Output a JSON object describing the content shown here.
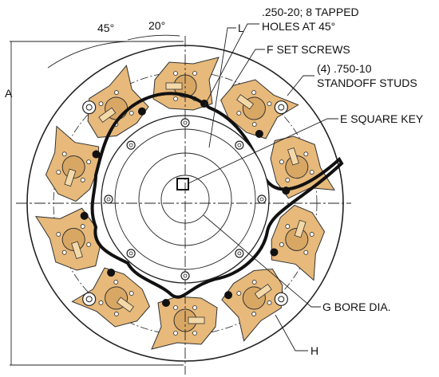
{
  "callouts": {
    "angle_45": "45°",
    "angle_20": "20°",
    "l": "L",
    "tapped_holes": [
      ".250-20; 8 TAPPED",
      "HOLES AT 45°"
    ],
    "set_screws": "F  SET SCREWS",
    "standoff_studs": [
      "(4) .750-10",
      "STANDOFF STUDS"
    ],
    "square_key": "E  SQUARE KEY",
    "a": "A",
    "bore": "G  BORE DIA.",
    "h": "H"
  }
}
